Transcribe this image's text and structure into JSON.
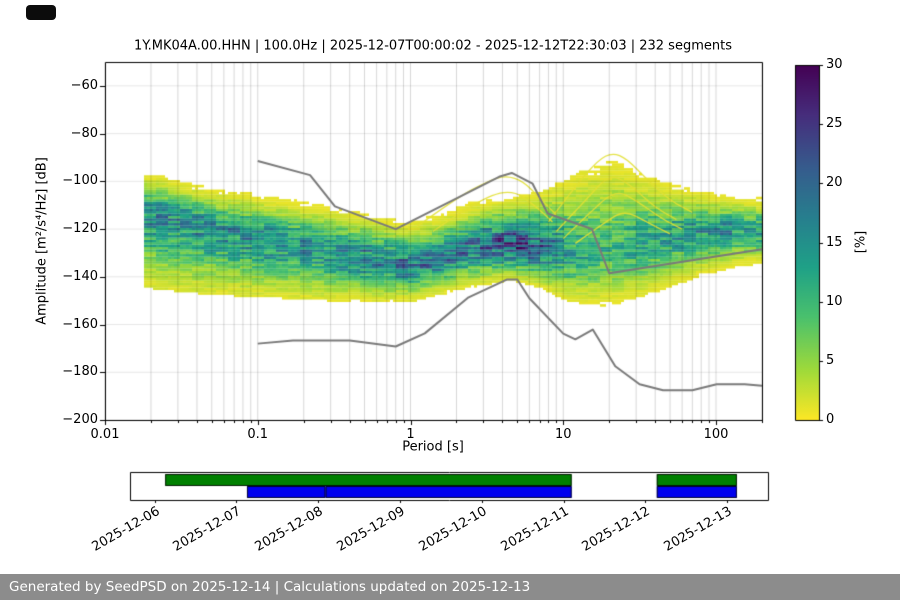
{
  "chart_data": {
    "type": "heatmap",
    "subtype": "ppsd-probability-density",
    "title": "1Y.MK04A.00.HHN | 100.0Hz | 2025-12-07T00:00:02 - 2025-12-12T22:30:03 | 232 segments",
    "xlabel": "Period [s]",
    "ylabel": "Amplitude [m²/s⁴/Hz] [dB]",
    "x_scale": "log",
    "xlim": [
      0.01,
      200
    ],
    "ylim": [
      -200,
      -50
    ],
    "grid": true,
    "x_ticks": [
      {
        "value": 0.01,
        "label": "0.01"
      },
      {
        "value": 0.1,
        "label": "0.1"
      },
      {
        "value": 1,
        "label": "1"
      },
      {
        "value": 10,
        "label": "10"
      },
      {
        "value": 100,
        "label": "100"
      }
    ],
    "y_ticks": [
      {
        "value": -60,
        "label": "−60"
      },
      {
        "value": -80,
        "label": "−80"
      },
      {
        "value": -100,
        "label": "−100"
      },
      {
        "value": -120,
        "label": "−120"
      },
      {
        "value": -140,
        "label": "−140"
      },
      {
        "value": -160,
        "label": "−160"
      },
      {
        "value": -180,
        "label": "−180"
      },
      {
        "value": -200,
        "label": "−200"
      }
    ],
    "colorbar": {
      "label": "[%]",
      "min": 0,
      "max": 30,
      "ticks": [
        {
          "value": 0,
          "label": "0"
        },
        {
          "value": 5,
          "label": "5"
        },
        {
          "value": 10,
          "label": "10"
        },
        {
          "value": 15,
          "label": "15"
        },
        {
          "value": 20,
          "label": "20"
        },
        {
          "value": 25,
          "label": "25"
        },
        {
          "value": 30,
          "label": "30"
        }
      ],
      "colormap": "viridis_r"
    },
    "noise_models": {
      "color": "#7a7a7a",
      "high": [
        [
          0.1,
          -91.5
        ],
        [
          0.22,
          -97.4
        ],
        [
          0.32,
          -110.5
        ],
        [
          0.8,
          -120.0
        ],
        [
          3.8,
          -98.1
        ],
        [
          4.6,
          -96.5
        ],
        [
          6.3,
          -101.0
        ],
        [
          7.9,
          -113.5
        ],
        [
          15.4,
          -120.0
        ],
        [
          20.0,
          -138.5
        ],
        [
          200,
          -128.5
        ]
      ],
      "low": [
        [
          0.1,
          -168.0
        ],
        [
          0.17,
          -166.7
        ],
        [
          0.4,
          -166.7
        ],
        [
          0.8,
          -169.2
        ],
        [
          1.24,
          -163.7
        ],
        [
          2.4,
          -148.6
        ],
        [
          4.3,
          -141.1
        ],
        [
          5.0,
          -141.1
        ],
        [
          6.0,
          -149.0
        ],
        [
          10.0,
          -163.8
        ],
        [
          12.0,
          -166.2
        ],
        [
          15.6,
          -162.1
        ],
        [
          21.9,
          -177.5
        ],
        [
          31.6,
          -185.0
        ],
        [
          45.0,
          -187.5
        ],
        [
          70.0,
          -187.5
        ],
        [
          101.0,
          -185.0
        ],
        [
          154.0,
          -185.0
        ],
        [
          200,
          -185.6
        ]
      ]
    },
    "ppsd_density": {
      "anchors": [
        {
          "period": 0.018,
          "top_db": -99,
          "mode_db": -112,
          "bottom_db": -142,
          "peak_percent": 16
        },
        {
          "period": 0.032,
          "top_db": -103,
          "mode_db": -116,
          "bottom_db": -144,
          "peak_percent": 16
        },
        {
          "period": 0.05,
          "top_db": -106,
          "mode_db": -119,
          "bottom_db": -145,
          "peak_percent": 16
        },
        {
          "period": 0.1,
          "top_db": -109,
          "mode_db": -123,
          "bottom_db": -146,
          "peak_percent": 16
        },
        {
          "period": 0.2,
          "top_db": -112,
          "mode_db": -127,
          "bottom_db": -147,
          "peak_percent": 16
        },
        {
          "period": 0.4,
          "top_db": -116,
          "mode_db": -131,
          "bottom_db": -148,
          "peak_percent": 17
        },
        {
          "period": 0.7,
          "top_db": -119,
          "mode_db": -134,
          "bottom_db": -148,
          "peak_percent": 18
        },
        {
          "period": 1.0,
          "top_db": -121,
          "mode_db": -136,
          "bottom_db": -148,
          "peak_percent": 19
        },
        {
          "period": 1.6,
          "top_db": -117,
          "mode_db": -132,
          "bottom_db": -145,
          "peak_percent": 18
        },
        {
          "period": 2.5,
          "top_db": -113,
          "mode_db": -128,
          "bottom_db": -142,
          "peak_percent": 19
        },
        {
          "period": 4.5,
          "top_db": -111,
          "mode_db": -126,
          "bottom_db": -139,
          "peak_percent": 25
        },
        {
          "period": 7.0,
          "top_db": -109,
          "mode_db": -128,
          "bottom_db": -142,
          "peak_percent": 21
        },
        {
          "period": 10,
          "top_db": -104,
          "mode_db": -130,
          "bottom_db": -147,
          "peak_percent": 15
        },
        {
          "period": 16,
          "top_db": -97,
          "mode_db": -131,
          "bottom_db": -150,
          "peak_percent": 11
        },
        {
          "period": 22,
          "top_db": -96,
          "mode_db": -129,
          "bottom_db": -149,
          "peak_percent": 11
        },
        {
          "period": 32,
          "top_db": -101,
          "mode_db": -126,
          "bottom_db": -146,
          "peak_percent": 13
        },
        {
          "period": 50,
          "top_db": -105,
          "mode_db": -123,
          "bottom_db": -142,
          "peak_percent": 14
        },
        {
          "period": 80,
          "top_db": -107,
          "mode_db": -121,
          "bottom_db": -137,
          "peak_percent": 15
        },
        {
          "period": 126,
          "top_db": -109,
          "mode_db": -120,
          "bottom_db": -134,
          "peak_percent": 15
        },
        {
          "period": 200,
          "top_db": -110,
          "mode_db": -121,
          "bottom_db": -132,
          "peak_percent": 15
        }
      ]
    },
    "outlier_curves": {
      "color": "#e2e033",
      "paths": [
        [
          [
            1.1,
            -119
          ],
          [
            2,
            -107
          ],
          [
            3.2,
            -100
          ],
          [
            4.2,
            -97.5
          ],
          [
            5.5,
            -100
          ],
          [
            7,
            -107
          ],
          [
            9,
            -114
          ]
        ],
        [
          [
            1.4,
            -121
          ],
          [
            2.6,
            -109
          ],
          [
            4.5,
            -103
          ],
          [
            6.5,
            -110
          ],
          [
            8.5,
            -117
          ]
        ],
        [
          [
            8,
            -117
          ],
          [
            12,
            -102
          ],
          [
            17,
            -91
          ],
          [
            21,
            -88
          ],
          [
            26,
            -90.5
          ],
          [
            35,
            -99
          ],
          [
            50,
            -108
          ],
          [
            70,
            -113
          ]
        ],
        [
          [
            9,
            -121
          ],
          [
            14,
            -108
          ],
          [
            20,
            -97
          ],
          [
            27,
            -101
          ],
          [
            40,
            -111
          ],
          [
            55,
            -116
          ]
        ],
        [
          [
            10,
            -124
          ],
          [
            15,
            -113
          ],
          [
            22,
            -103.5
          ],
          [
            30,
            -108
          ],
          [
            45,
            -116
          ],
          [
            60,
            -120
          ]
        ],
        [
          [
            12,
            -126
          ],
          [
            18,
            -118
          ],
          [
            25,
            -112
          ],
          [
            35,
            -117
          ],
          [
            50,
            -122
          ]
        ]
      ]
    }
  },
  "timeline": {
    "units": "days since 2025-12-06",
    "range_days": [
      -0.3,
      7.5
    ],
    "tick_labels": [
      "2025-12-06",
      "2025-12-07",
      "2025-12-08",
      "2025-12-09",
      "2025-12-10",
      "2025-12-11",
      "2025-12-12",
      "2025-12-13"
    ],
    "green_color": "#008000",
    "blue_color": "#0000ee",
    "green_segments": [
      [
        0.13,
        5.1
      ],
      [
        6.14,
        7.12
      ]
    ],
    "blue_segments": [
      [
        1.13,
        2.09
      ],
      [
        2.09,
        5.1
      ],
      [
        6.14,
        7.12
      ]
    ]
  },
  "footer": {
    "text": "Generated by SeedPSD on 2025-12-14 | Calculations updated on 2025-12-13",
    "bg": "#8c8c8c",
    "fg": "#ffffff"
  }
}
